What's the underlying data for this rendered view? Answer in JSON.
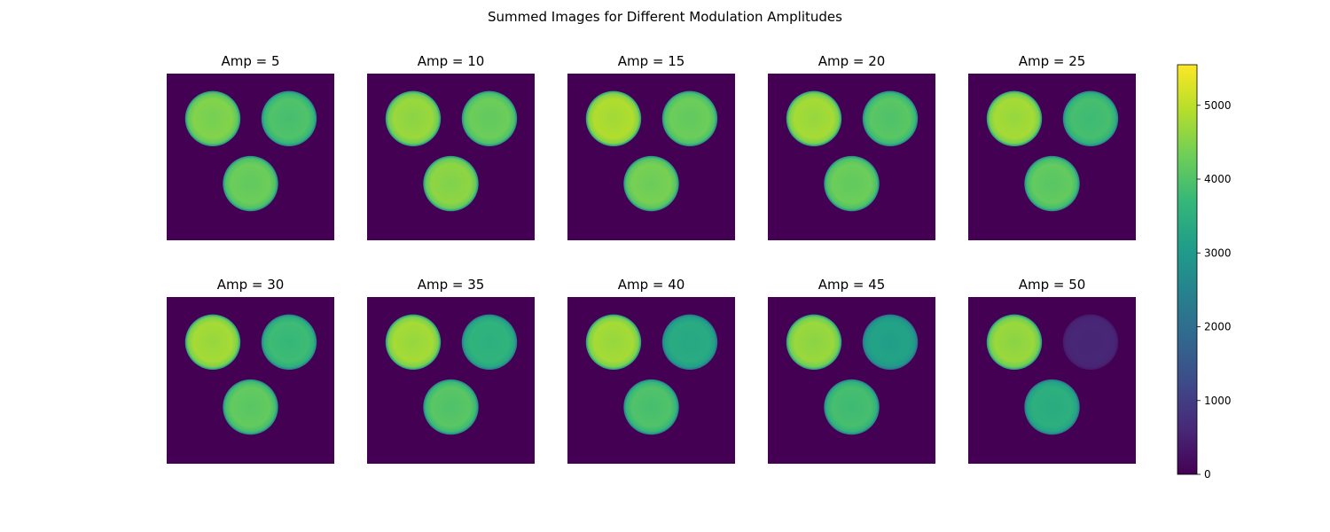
{
  "title": "Summed Images for Different Modulation Amplitudes",
  "colors": {
    "background": "#440154",
    "viridis": [
      "#440154",
      "#482878",
      "#3e4a89",
      "#31688e",
      "#26828e",
      "#1f9e89",
      "#35b779",
      "#6ece58",
      "#b5de2b",
      "#fde725"
    ]
  },
  "chart_data": {
    "type": "heatmap",
    "colormap": "viridis",
    "colorbar": {
      "range": [
        0,
        5550
      ],
      "ticks": [
        0,
        1000,
        2000,
        3000,
        4000,
        5000
      ],
      "tick_labels": [
        "0",
        "1000",
        "2000",
        "3000",
        "4000",
        "5000"
      ],
      "placement": "right"
    },
    "panels": [
      {
        "title": "Amp = 5",
        "amp": 5,
        "spot_levels": [
          4500,
          4000,
          4300
        ]
      },
      {
        "title": "Amp = 10",
        "amp": 10,
        "spot_levels": [
          4700,
          4300,
          4600
        ]
      },
      {
        "title": "Amp = 15",
        "amp": 15,
        "spot_levels": [
          4900,
          4300,
          4400
        ]
      },
      {
        "title": "Amp = 20",
        "amp": 20,
        "spot_levels": [
          4800,
          4100,
          4300
        ]
      },
      {
        "title": "Amp = 25",
        "amp": 25,
        "spot_levels": [
          4800,
          3900,
          4200
        ]
      },
      {
        "title": "Amp = 30",
        "amp": 30,
        "spot_levels": [
          4800,
          3800,
          4200
        ]
      },
      {
        "title": "Amp = 35",
        "amp": 35,
        "spot_levels": [
          4800,
          3600,
          4100
        ]
      },
      {
        "title": "Amp = 40",
        "amp": 40,
        "spot_levels": [
          4800,
          3400,
          4000
        ]
      },
      {
        "title": "Amp = 45",
        "amp": 45,
        "spot_levels": [
          4700,
          3200,
          3900
        ]
      },
      {
        "title": "Amp = 50",
        "amp": 50,
        "spot_levels": [
          4700,
          600,
          3500
        ]
      }
    ],
    "axes_visible": false
  }
}
